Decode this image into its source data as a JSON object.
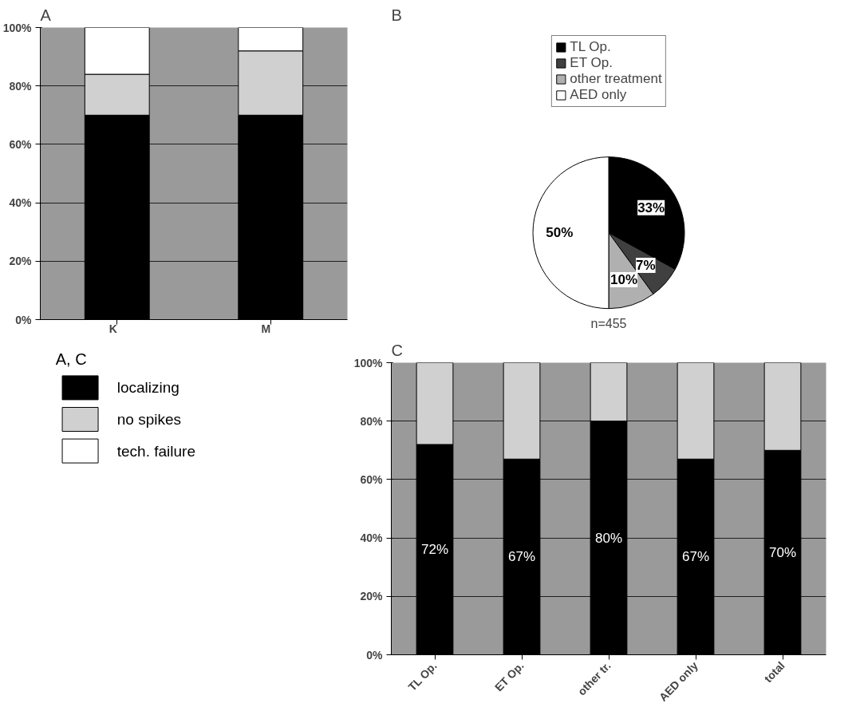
{
  "chart_data": [
    {
      "type": "bar",
      "title": "A",
      "stacked": true,
      "categories": [
        "K",
        "M"
      ],
      "ylim": [
        0,
        100
      ],
      "yticks": [
        {
          "value": 0,
          "label": "0%"
        },
        {
          "value": 20,
          "label": "20%"
        },
        {
          "value": 40,
          "label": "40%"
        },
        {
          "value": 60,
          "label": "60%"
        },
        {
          "value": 80,
          "label": "80%"
        },
        {
          "value": 100,
          "label": "100%"
        }
      ],
      "grid": "y",
      "legend": "bottom",
      "legend_title": "A, C",
      "series": [
        {
          "name": "localizing",
          "color": "#000000",
          "values": [
            70,
            70
          ]
        },
        {
          "name": "no spikes",
          "color": "#d0d0d0",
          "values": [
            14,
            22
          ]
        },
        {
          "name": "tech. failure",
          "color": "#ffffff",
          "values": [
            16,
            8
          ]
        }
      ]
    },
    {
      "type": "pie",
      "title": "B",
      "categories": [
        "TL Op.",
        "ET Op.",
        "other treatment",
        "AED only"
      ],
      "values": [
        33,
        7,
        10,
        50
      ],
      "colors": [
        "#000000",
        "#404040",
        "#b0b0b0",
        "#ffffff"
      ],
      "value_labels": [
        "33%",
        "7%",
        "10%",
        "50%"
      ],
      "legend": "top",
      "annotations": [
        "n=455"
      ]
    },
    {
      "type": "bar",
      "title": "C",
      "stacked": true,
      "categories": [
        "TL Op.",
        "ET Op.",
        "other tr.",
        "AED only",
        "total"
      ],
      "ylim": [
        0,
        100
      ],
      "yticks": [
        {
          "value": 0,
          "label": "0%"
        },
        {
          "value": 20,
          "label": "20%"
        },
        {
          "value": 40,
          "label": "40%"
        },
        {
          "value": 60,
          "label": "60%"
        },
        {
          "value": 80,
          "label": "80%"
        },
        {
          "value": 100,
          "label": "100%"
        }
      ],
      "grid": "y",
      "series": [
        {
          "color": "#000000",
          "values": [
            72,
            67,
            80,
            67,
            70
          ],
          "value_labels": [
            "72%",
            "67%",
            "80%",
            "67%",
            "70%"
          ]
        },
        {
          "color": "#d0d0d0",
          "values": [
            28,
            33,
            20,
            33,
            30
          ]
        }
      ]
    }
  ]
}
